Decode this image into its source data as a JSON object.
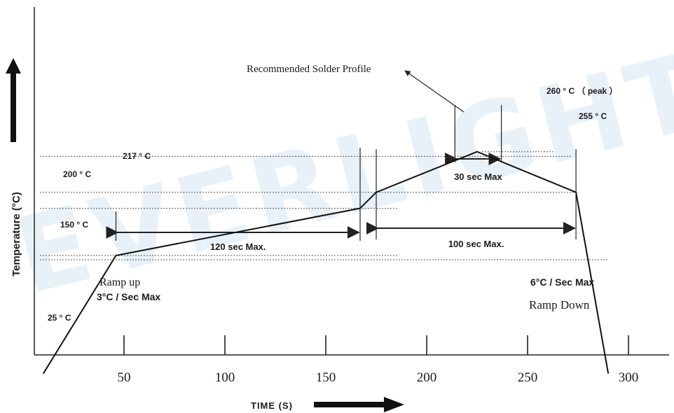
{
  "chart_data": {
    "type": "line",
    "title": "Recommended Solder Profile",
    "xlabel": "TIME (S)",
    "ylabel": "Temperature (°C)",
    "x_ticks": [
      50,
      100,
      150,
      200,
      250,
      300
    ],
    "xlim": [
      10,
      320
    ],
    "ylim": [
      0,
      290
    ],
    "watermark": "EVERLIGHT",
    "series": [
      {
        "x": [
          10,
          46,
          167,
          175,
          225,
          274,
          290
        ],
        "y": [
          25,
          150,
          200,
          217,
          260,
          217,
          25
        ]
      }
    ],
    "reference_lines": [
      {
        "y": 150,
        "label": "150 ° C"
      },
      {
        "y": 200,
        "label": "200 ° C"
      },
      {
        "y": 217,
        "label": "217 ° C"
      },
      {
        "y": 255,
        "label": "255 ° C"
      },
      {
        "y": 260,
        "label": "260 ° C （ peak ）"
      },
      {
        "y": 25,
        "label": "25 ° C"
      }
    ],
    "durations": [
      {
        "from": 46,
        "to": 167,
        "label": "120 sec Max."
      },
      {
        "from": 175,
        "to": 274,
        "label": "100 sec Max."
      },
      {
        "from": 214,
        "to": 237,
        "label": "30 sec Max"
      }
    ],
    "annotations": {
      "ramp_up_title": "Ramp up",
      "ramp_up_rate": "3°C / Sec Max",
      "ramp_down_rate": "6°C / Sec Max",
      "ramp_down_title": "Ramp Down"
    },
    "colors": {
      "curve": "#111111",
      "grid": "#555555",
      "watermark": "#9cc3e2"
    }
  }
}
